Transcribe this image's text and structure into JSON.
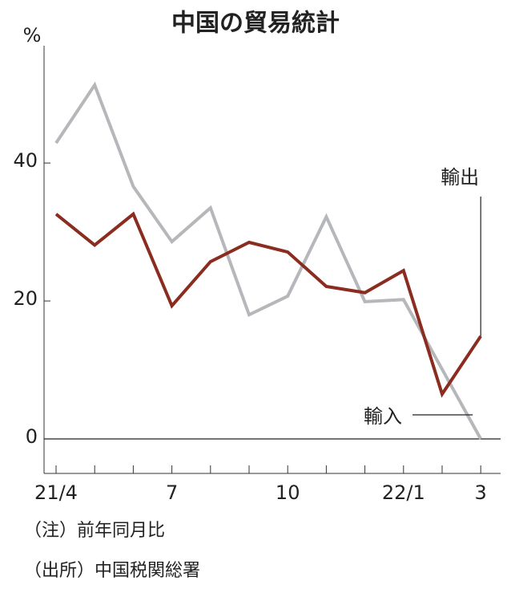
{
  "chart_data": {
    "type": "line",
    "title": "中国の貿易統計",
    "y_unit": "%",
    "categories": [
      "21/4",
      null,
      null,
      "7",
      null,
      null,
      "10",
      null,
      null,
      "22/1",
      null,
      "3"
    ],
    "series": [
      {
        "name": "輸出",
        "color": "#8b2c20",
        "values": [
          32.6,
          28.1,
          32.6,
          19.3,
          25.7,
          28.5,
          27.1,
          22.1,
          21.2,
          24.4,
          6.5,
          14.9
        ]
      },
      {
        "name": "輸入",
        "color": "#b5b7ba",
        "values": [
          42.9,
          51.3,
          36.6,
          28.6,
          33.5,
          18.0,
          20.7,
          32.2,
          19.9,
          20.2,
          10.1,
          0
        ]
      }
    ],
    "ylim": [
      -5,
      57
    ],
    "yticks": [
      0,
      20,
      40
    ],
    "notes": [
      "（注）前年同月比",
      "（出所）中国税関総署"
    ]
  }
}
